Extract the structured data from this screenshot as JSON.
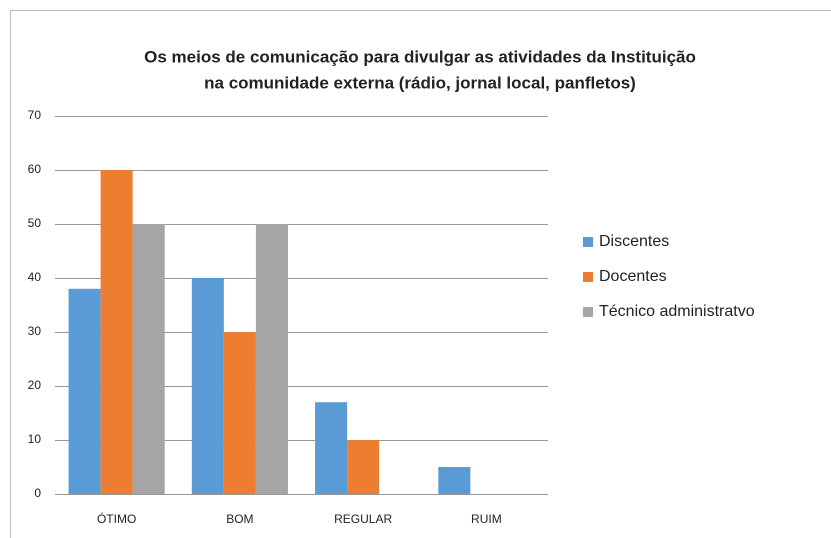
{
  "chart_data": {
    "type": "bar",
    "title": [
      "Os meios de comunicação para divulgar as atividades da Instituição",
      "na comunidade externa (rádio, jornal local, panfletos)"
    ],
    "categories": [
      "ÓTIMO",
      "BOM",
      "REGULAR",
      "RUIM"
    ],
    "series": [
      {
        "name": "Discentes",
        "color": "#5b9bd5",
        "values": [
          38,
          40,
          17,
          5
        ]
      },
      {
        "name": "Docentes",
        "color": "#ed7d31",
        "values": [
          60,
          30,
          10,
          0
        ]
      },
      {
        "name": "Técnico administratvo",
        "color": "#a5a5a5",
        "values": [
          50,
          50,
          0,
          0
        ]
      }
    ],
    "ylim": [
      0,
      70
    ],
    "yticks": [
      0,
      10,
      20,
      30,
      40,
      50,
      60,
      70
    ],
    "grid": true,
    "legend": "right"
  }
}
